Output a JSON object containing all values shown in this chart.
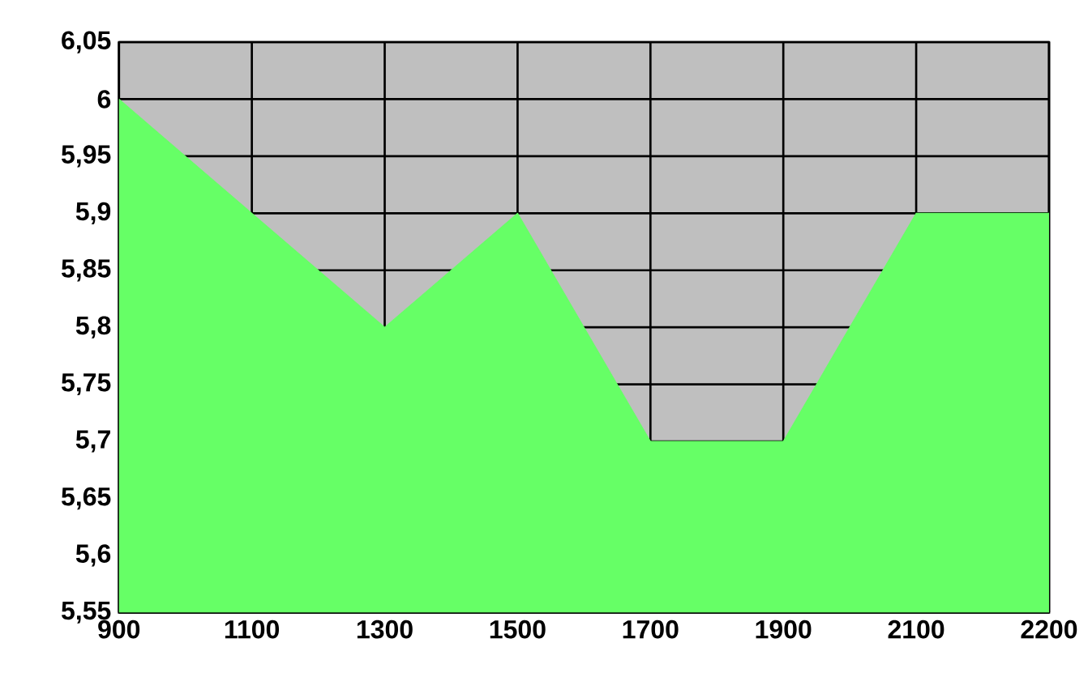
{
  "chart_data": {
    "type": "area",
    "categories": [
      "900",
      "1100",
      "1300",
      "1500",
      "1700",
      "1900",
      "2100",
      "2200"
    ],
    "series": [
      {
        "color": "#66ff66",
        "values": [
          6,
          5.9,
          5.8,
          5.9,
          5.7,
          5.7,
          5.9,
          5.9
        ]
      }
    ],
    "ylim": [
      5.55,
      6.05
    ],
    "yticks": [
      {
        "value": 5.55,
        "label": "5,55"
      },
      {
        "value": 5.6,
        "label": "5,6"
      },
      {
        "value": 5.65,
        "label": "5,65"
      },
      {
        "value": 5.7,
        "label": "5,7"
      },
      {
        "value": 5.75,
        "label": "5,75"
      },
      {
        "value": 5.8,
        "label": "5,8"
      },
      {
        "value": 5.85,
        "label": "5,85"
      },
      {
        "value": 5.9,
        "label": "5,9"
      },
      {
        "value": 5.95,
        "label": "5,95"
      },
      {
        "value": 6,
        "label": "6"
      },
      {
        "value": 6.05,
        "label": "6,05"
      }
    ],
    "grid": true
  }
}
